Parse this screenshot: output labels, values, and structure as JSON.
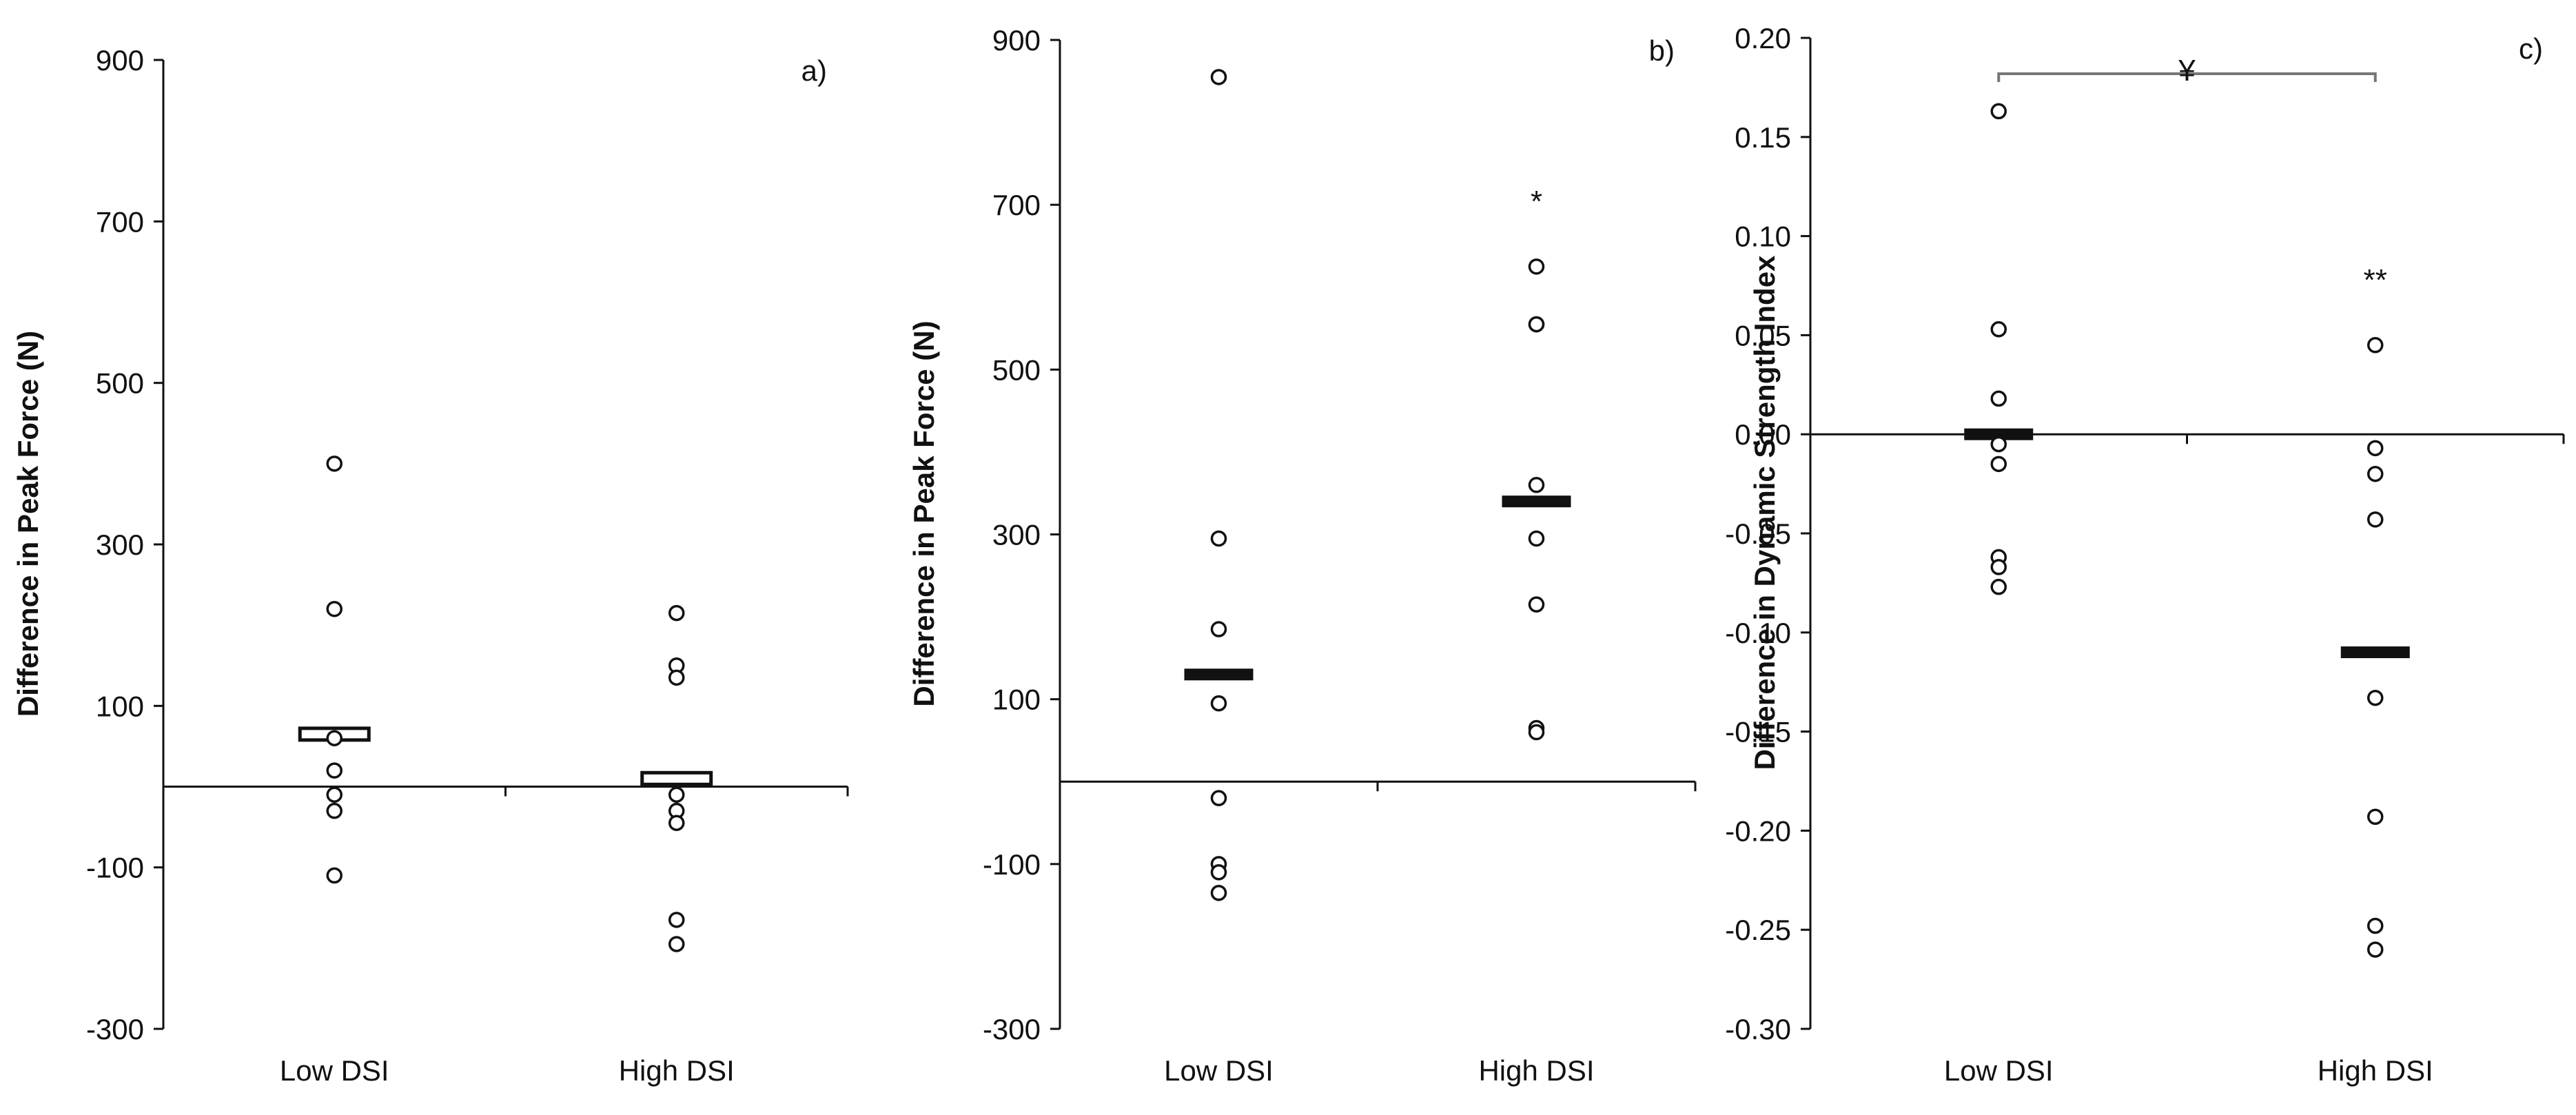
{
  "chart_data": [
    {
      "type": "scatter",
      "panel_label": "a)",
      "ylabel": "Difference in Peak Force (N)",
      "ylim": [
        -300,
        900
      ],
      "y_ticks": [
        900,
        700,
        500,
        300,
        100,
        -100,
        -300
      ],
      "categories": [
        "Low DSI",
        "High DSI"
      ],
      "points": [
        [
          400,
          220,
          60,
          20,
          -10,
          -30,
          -110
        ],
        [
          215,
          150,
          135,
          -10,
          -30,
          -45,
          -165,
          -195
        ]
      ],
      "means": [
        65,
        10
      ],
      "mean_style": "open",
      "annotations": [],
      "bracket": null
    },
    {
      "type": "scatter",
      "panel_label": "b)",
      "ylabel": "Difference in Peak Force (N)",
      "ylim": [
        -300,
        900
      ],
      "y_ticks": [
        900,
        700,
        500,
        300,
        100,
        -100,
        -300
      ],
      "categories": [
        "Low DSI",
        "High DSI"
      ],
      "points": [
        [
          855,
          295,
          185,
          95,
          -20,
          -100,
          -110,
          -135
        ],
        [
          625,
          555,
          555,
          360,
          295,
          215,
          65,
          60
        ]
      ],
      "means": [
        130,
        340
      ],
      "mean_style": "filled",
      "annotations": [
        {
          "category": 1,
          "text": "*"
        }
      ],
      "bracket": null
    },
    {
      "type": "scatter",
      "panel_label": "c)",
      "ylabel": "Difference in Dynamic Strength Index",
      "ylim": [
        -0.3,
        0.2
      ],
      "y_ticks": [
        "0.20",
        "0.15",
        "0.10",
        "0.05",
        "0.00",
        "-0.05",
        "-0.10",
        "-0.15",
        "-0.20",
        "-0.25",
        "-0.30"
      ],
      "categories": [
        "Low DSI",
        "High DSI"
      ],
      "points": [
        [
          0.163,
          0.053,
          0.018,
          -0.005,
          -0.015,
          -0.062,
          -0.067,
          -0.077
        ],
        [
          0.045,
          -0.007,
          -0.02,
          -0.043,
          -0.133,
          -0.193,
          -0.248,
          -0.26
        ]
      ],
      "means": [
        0.0,
        -0.11
      ],
      "mean_style": "filled",
      "annotations": [
        {
          "category": 1,
          "text": "**"
        }
      ],
      "bracket": {
        "label": "¥"
      }
    }
  ]
}
